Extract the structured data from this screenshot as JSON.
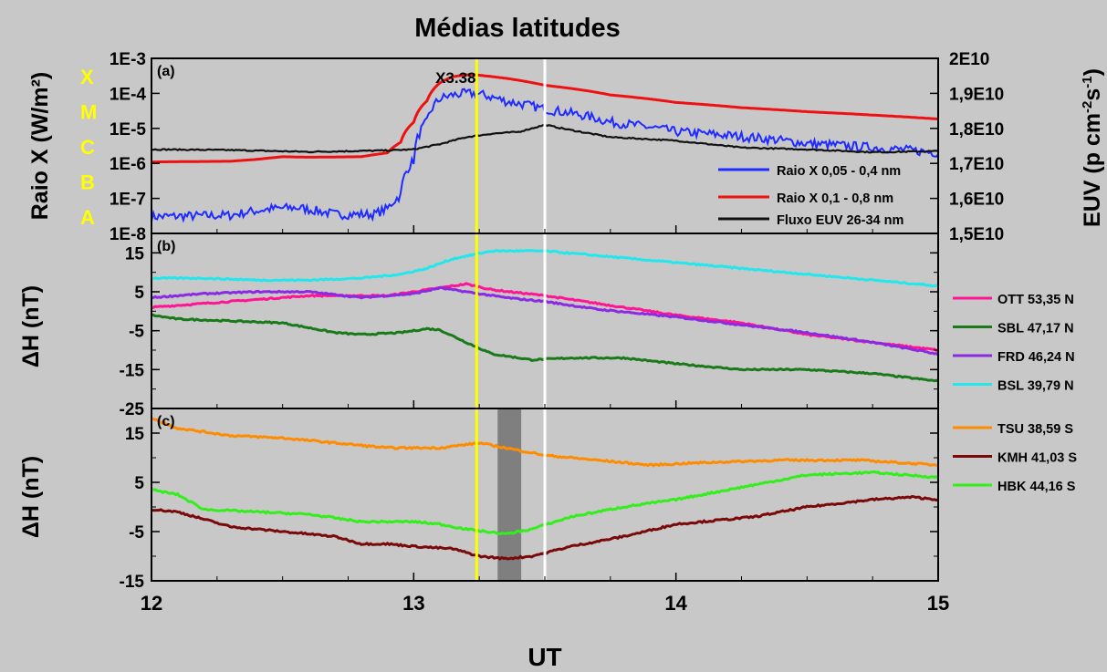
{
  "title": "Médias latitudes",
  "xlabel": "UT",
  "colors": {
    "background": "#c8c8c8",
    "yellow_line": "#ffff00",
    "white_line": "#ffffff",
    "shade": "#7f7f7f"
  },
  "chart_data": [
    {
      "panel": "(a)",
      "type": "line",
      "ylabel_left": "Raio X (W/m²)",
      "ylabel_right_base": "EUV (p cm",
      "ylabel_right_sup1": "-2",
      "ylabel_right_mid": "s",
      "ylabel_right_sup2": "-1",
      "ylabel_right_end": ")",
      "yscale_left": "log",
      "ylim_left": [
        1e-08,
        0.001
      ],
      "yticks_left": [
        "1E-3",
        "1E-4",
        "1E-5",
        "1E-6",
        "1E-7",
        "1E-8"
      ],
      "ylim_right": [
        15000000000.0,
        20000000000.0
      ],
      "yticks_right": [
        "2E10",
        "1,9E10",
        "1,8E10",
        "1,7E10",
        "1,6E10",
        "1,5E10"
      ],
      "flare_classes": [
        "X",
        "M",
        "C",
        "B",
        "A"
      ],
      "annotation": "X3.38",
      "legend": [
        "Raio X 0,05 - 0,4 nm",
        "Raio X 0,1 - 0,8 nm",
        "Fluxo EUV 26-34 nm"
      ],
      "series": [
        {
          "name": "Raio X 0,05 - 0,4 nm",
          "color": "#1f2bff",
          "noise": 0.12,
          "points": [
            [
              12.0,
              3e-08
            ],
            [
              12.3,
              3.3e-08
            ],
            [
              12.45,
              5e-08
            ],
            [
              12.55,
              5.5e-08
            ],
            [
              12.7,
              3.5e-08
            ],
            [
              12.85,
              3.5e-08
            ],
            [
              12.9,
              5e-08
            ],
            [
              12.95,
              1.2e-07
            ],
            [
              13.0,
              1.2e-06
            ],
            [
              13.05,
              1.5e-05
            ],
            [
              13.1,
              7e-05
            ],
            [
              13.15,
              9e-05
            ],
            [
              13.2,
              0.0001
            ],
            [
              13.25,
              9.5e-05
            ],
            [
              13.35,
              6e-05
            ],
            [
              13.5,
              3.5e-05
            ],
            [
              13.75,
              1.5e-05
            ],
            [
              14.0,
              8e-06
            ],
            [
              14.5,
              3.7e-06
            ],
            [
              15.0,
              2e-06
            ]
          ]
        },
        {
          "name": "Raio X 0,1 - 0,8 nm",
          "color": "#ee1111",
          "noise": 0,
          "points": [
            [
              12.0,
              1.1e-06
            ],
            [
              12.3,
              1.15e-06
            ],
            [
              12.4,
              1.3e-06
            ],
            [
              12.5,
              1.55e-06
            ],
            [
              12.6,
              1.5e-06
            ],
            [
              12.8,
              1.55e-06
            ],
            [
              12.9,
              2e-06
            ],
            [
              12.95,
              4e-06
            ],
            [
              13.0,
              1.5e-05
            ],
            [
              13.05,
              6e-05
            ],
            [
              13.1,
              0.0002
            ],
            [
              13.15,
              0.0003
            ],
            [
              13.2,
              0.00034
            ],
            [
              13.25,
              0.00033
            ],
            [
              13.35,
              0.00027
            ],
            [
              13.5,
              0.00017
            ],
            [
              13.75,
              9e-05
            ],
            [
              14.0,
              5.5e-05
            ],
            [
              14.25,
              3.9e-05
            ],
            [
              14.5,
              3e-05
            ],
            [
              14.75,
              2.4e-05
            ],
            [
              15.0,
              1.85e-05
            ]
          ]
        },
        {
          "name": "Fluxo EUV 26-34 nm",
          "color": "#111111",
          "axis": "right",
          "noise": 0.002,
          "points": [
            [
              12.0,
              17400000000.0
            ],
            [
              12.3,
              17380000000.0
            ],
            [
              12.6,
              17330000000.0
            ],
            [
              12.9,
              17370000000.0
            ],
            [
              13.0,
              17400000000.0
            ],
            [
              13.1,
              17550000000.0
            ],
            [
              13.2,
              17750000000.0
            ],
            [
              13.3,
              17850000000.0
            ],
            [
              13.4,
              17900000000.0
            ],
            [
              13.5,
              18100000000.0
            ],
            [
              13.6,
              17950000000.0
            ],
            [
              13.75,
              17750000000.0
            ],
            [
              14.0,
              17650000000.0
            ],
            [
              14.25,
              17450000000.0
            ],
            [
              14.5,
              17400000000.0
            ],
            [
              14.75,
              17320000000.0
            ],
            [
              15.0,
              17350000000.0
            ]
          ]
        }
      ]
    },
    {
      "panel": "(b)",
      "type": "line",
      "ylabel": "ΔH (nT)",
      "ylim": [
        -25,
        20
      ],
      "yticks": [
        "15",
        "5",
        "-5",
        "-15",
        "-25"
      ],
      "series": [
        {
          "name": "OTT 53,35 N",
          "color": "#ff1493",
          "points": [
            [
              12.0,
              1
            ],
            [
              12.2,
              2
            ],
            [
              12.4,
              3
            ],
            [
              12.6,
              4
            ],
            [
              12.8,
              4
            ],
            [
              12.9,
              4
            ],
            [
              13.0,
              5
            ],
            [
              13.1,
              6
            ],
            [
              13.2,
              7
            ],
            [
              13.3,
              5.5
            ],
            [
              13.5,
              4
            ],
            [
              13.7,
              2
            ],
            [
              14.0,
              -1
            ],
            [
              14.25,
              -3
            ],
            [
              14.5,
              -6
            ],
            [
              14.75,
              -8
            ],
            [
              15.0,
              -10
            ]
          ]
        },
        {
          "name": "SBL 47,17 N",
          "color": "#1a7a1a",
          "points": [
            [
              12.0,
              -1
            ],
            [
              12.1,
              -2
            ],
            [
              12.3,
              -2.5
            ],
            [
              12.5,
              -3
            ],
            [
              12.7,
              -5.5
            ],
            [
              12.8,
              -6
            ],
            [
              12.95,
              -5.5
            ],
            [
              13.05,
              -4.5
            ],
            [
              13.1,
              -4.8
            ],
            [
              13.2,
              -8
            ],
            [
              13.3,
              -11
            ],
            [
              13.45,
              -12.5
            ],
            [
              13.6,
              -12
            ],
            [
              13.8,
              -12
            ],
            [
              14.0,
              -13.5
            ],
            [
              14.25,
              -15
            ],
            [
              14.5,
              -15
            ],
            [
              14.75,
              -16
            ],
            [
              15.0,
              -18
            ]
          ]
        },
        {
          "name": "FRD 46,24 N",
          "color": "#8a2be2",
          "points": [
            [
              12.0,
              3.5
            ],
            [
              12.2,
              4.5
            ],
            [
              12.4,
              5
            ],
            [
              12.6,
              5
            ],
            [
              12.8,
              3.5
            ],
            [
              13.0,
              4.5
            ],
            [
              13.1,
              6
            ],
            [
              13.2,
              5
            ],
            [
              13.35,
              3.5
            ],
            [
              13.5,
              2.5
            ],
            [
              13.7,
              0.5
            ],
            [
              14.0,
              -1.5
            ],
            [
              14.25,
              -3.5
            ],
            [
              14.5,
              -5.5
            ],
            [
              14.75,
              -8
            ],
            [
              15.0,
              -11
            ]
          ]
        },
        {
          "name": "BSL 39,79 N",
          "color": "#22e8ee",
          "points": [
            [
              12.0,
              8.5
            ],
            [
              12.2,
              8.5
            ],
            [
              12.4,
              8
            ],
            [
              12.6,
              8
            ],
            [
              12.8,
              8.5
            ],
            [
              12.95,
              9.5
            ],
            [
              13.05,
              11
            ],
            [
              13.15,
              13.5
            ],
            [
              13.3,
              15.5
            ],
            [
              13.5,
              15.5
            ],
            [
              13.75,
              14
            ],
            [
              14.0,
              12.5
            ],
            [
              14.25,
              11
            ],
            [
              14.5,
              9.5
            ],
            [
              14.75,
              8
            ],
            [
              15.0,
              6.5
            ]
          ]
        }
      ]
    },
    {
      "panel": "(c)",
      "type": "line",
      "ylabel": "ΔH (nT)",
      "ylim": [
        -15,
        20
      ],
      "yticks": [
        "15",
        "5",
        "-5",
        "-15"
      ],
      "series": [
        {
          "name": "TSU 38,59 S",
          "color": "#ff8c00",
          "points": [
            [
              12.0,
              18
            ],
            [
              12.1,
              16
            ],
            [
              12.3,
              14.5
            ],
            [
              12.5,
              14
            ],
            [
              12.7,
              13
            ],
            [
              12.9,
              12
            ],
            [
              13.1,
              12
            ],
            [
              13.25,
              13
            ],
            [
              13.4,
              11.5
            ],
            [
              13.5,
              10.5
            ],
            [
              13.7,
              9.5
            ],
            [
              13.9,
              8.5
            ],
            [
              14.1,
              9
            ],
            [
              14.4,
              9.5
            ],
            [
              14.7,
              9.5
            ],
            [
              15.0,
              8.5
            ]
          ]
        },
        {
          "name": "KMH 41,03 S",
          "color": "#7a0a0a",
          "points": [
            [
              12.0,
              -0.5
            ],
            [
              12.1,
              -1
            ],
            [
              12.3,
              -4
            ],
            [
              12.5,
              -5
            ],
            [
              12.7,
              -6
            ],
            [
              12.8,
              -7.5
            ],
            [
              12.9,
              -7.5
            ],
            [
              13.0,
              -8
            ],
            [
              13.15,
              -8.5
            ],
            [
              13.25,
              -10
            ],
            [
              13.35,
              -10.5
            ],
            [
              13.45,
              -10
            ],
            [
              13.6,
              -8
            ],
            [
              13.8,
              -6
            ],
            [
              14.0,
              -3.5
            ],
            [
              14.3,
              -2
            ],
            [
              14.5,
              0
            ],
            [
              14.75,
              1.5
            ],
            [
              14.9,
              2
            ],
            [
              15.0,
              1.5
            ]
          ]
        },
        {
          "name": "HBK 44,16 S",
          "color": "#32ee1a",
          "points": [
            [
              12.0,
              3.5
            ],
            [
              12.1,
              2.5
            ],
            [
              12.2,
              -0.5
            ],
            [
              12.4,
              -1
            ],
            [
              12.6,
              -1.5
            ],
            [
              12.8,
              -3
            ],
            [
              13.0,
              -3
            ],
            [
              13.1,
              -3.5
            ],
            [
              13.2,
              -4.5
            ],
            [
              13.35,
              -5.5
            ],
            [
              13.45,
              -4.5
            ],
            [
              13.6,
              -2
            ],
            [
              13.8,
              0
            ],
            [
              14.0,
              1.5
            ],
            [
              14.25,
              4
            ],
            [
              14.5,
              6.5
            ],
            [
              14.75,
              7
            ],
            [
              15.0,
              6
            ]
          ]
        }
      ]
    }
  ],
  "x": {
    "range": [
      12,
      15
    ],
    "ticks": [
      "12",
      "13",
      "14",
      "15"
    ]
  },
  "markers": {
    "yellow_line_ut": 13.24,
    "white_line_ut": 13.5,
    "shade_ut": [
      13.32,
      13.41
    ]
  }
}
